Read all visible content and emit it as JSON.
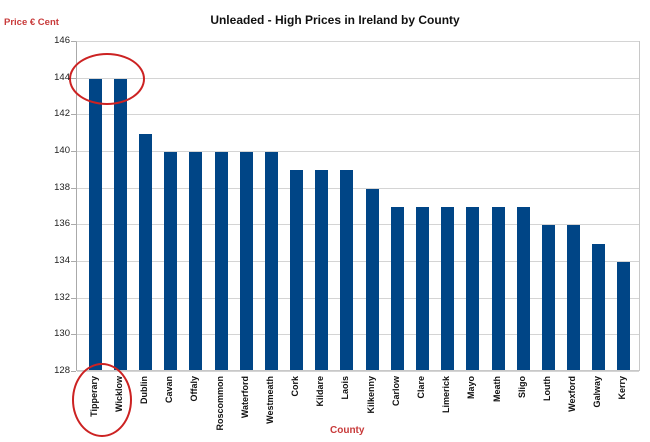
{
  "chart_data": {
    "type": "bar",
    "title": "Unleaded - High Prices in Ireland by County",
    "xlabel": "County",
    "ylabel": "Price € Cent",
    "ylim": [
      128,
      146
    ],
    "yticks": [
      128,
      130,
      132,
      134,
      136,
      138,
      140,
      142,
      144,
      146
    ],
    "grid": true,
    "legend": "none",
    "categories": [
      "Tipperary",
      "Wicklow",
      "Dublin",
      "Cavan",
      "Offaly",
      "Roscommon",
      "Waterford",
      "Westmeath",
      "Cork",
      "Kildare",
      "Laois",
      "Kilkenny",
      "Carlow",
      "Clare",
      "Limerick",
      "Mayo",
      "Meath",
      "Sligo",
      "Louth",
      "Wexford",
      "Galway",
      "Kerry"
    ],
    "values": [
      143.9,
      143.9,
      140.9,
      139.9,
      139.9,
      139.9,
      139.9,
      139.9,
      138.9,
      138.9,
      138.9,
      137.9,
      136.9,
      136.9,
      136.9,
      136.9,
      136.9,
      136.9,
      135.9,
      135.9,
      134.9,
      133.9
    ],
    "bar_color": "#004586",
    "annotations": [
      "Red circles highlight Tipperary and Wicklow (highest prices)"
    ]
  },
  "colors": {
    "bar": "#004586",
    "axis_label": "#c83a3a",
    "highlight": "#cc2222"
  }
}
